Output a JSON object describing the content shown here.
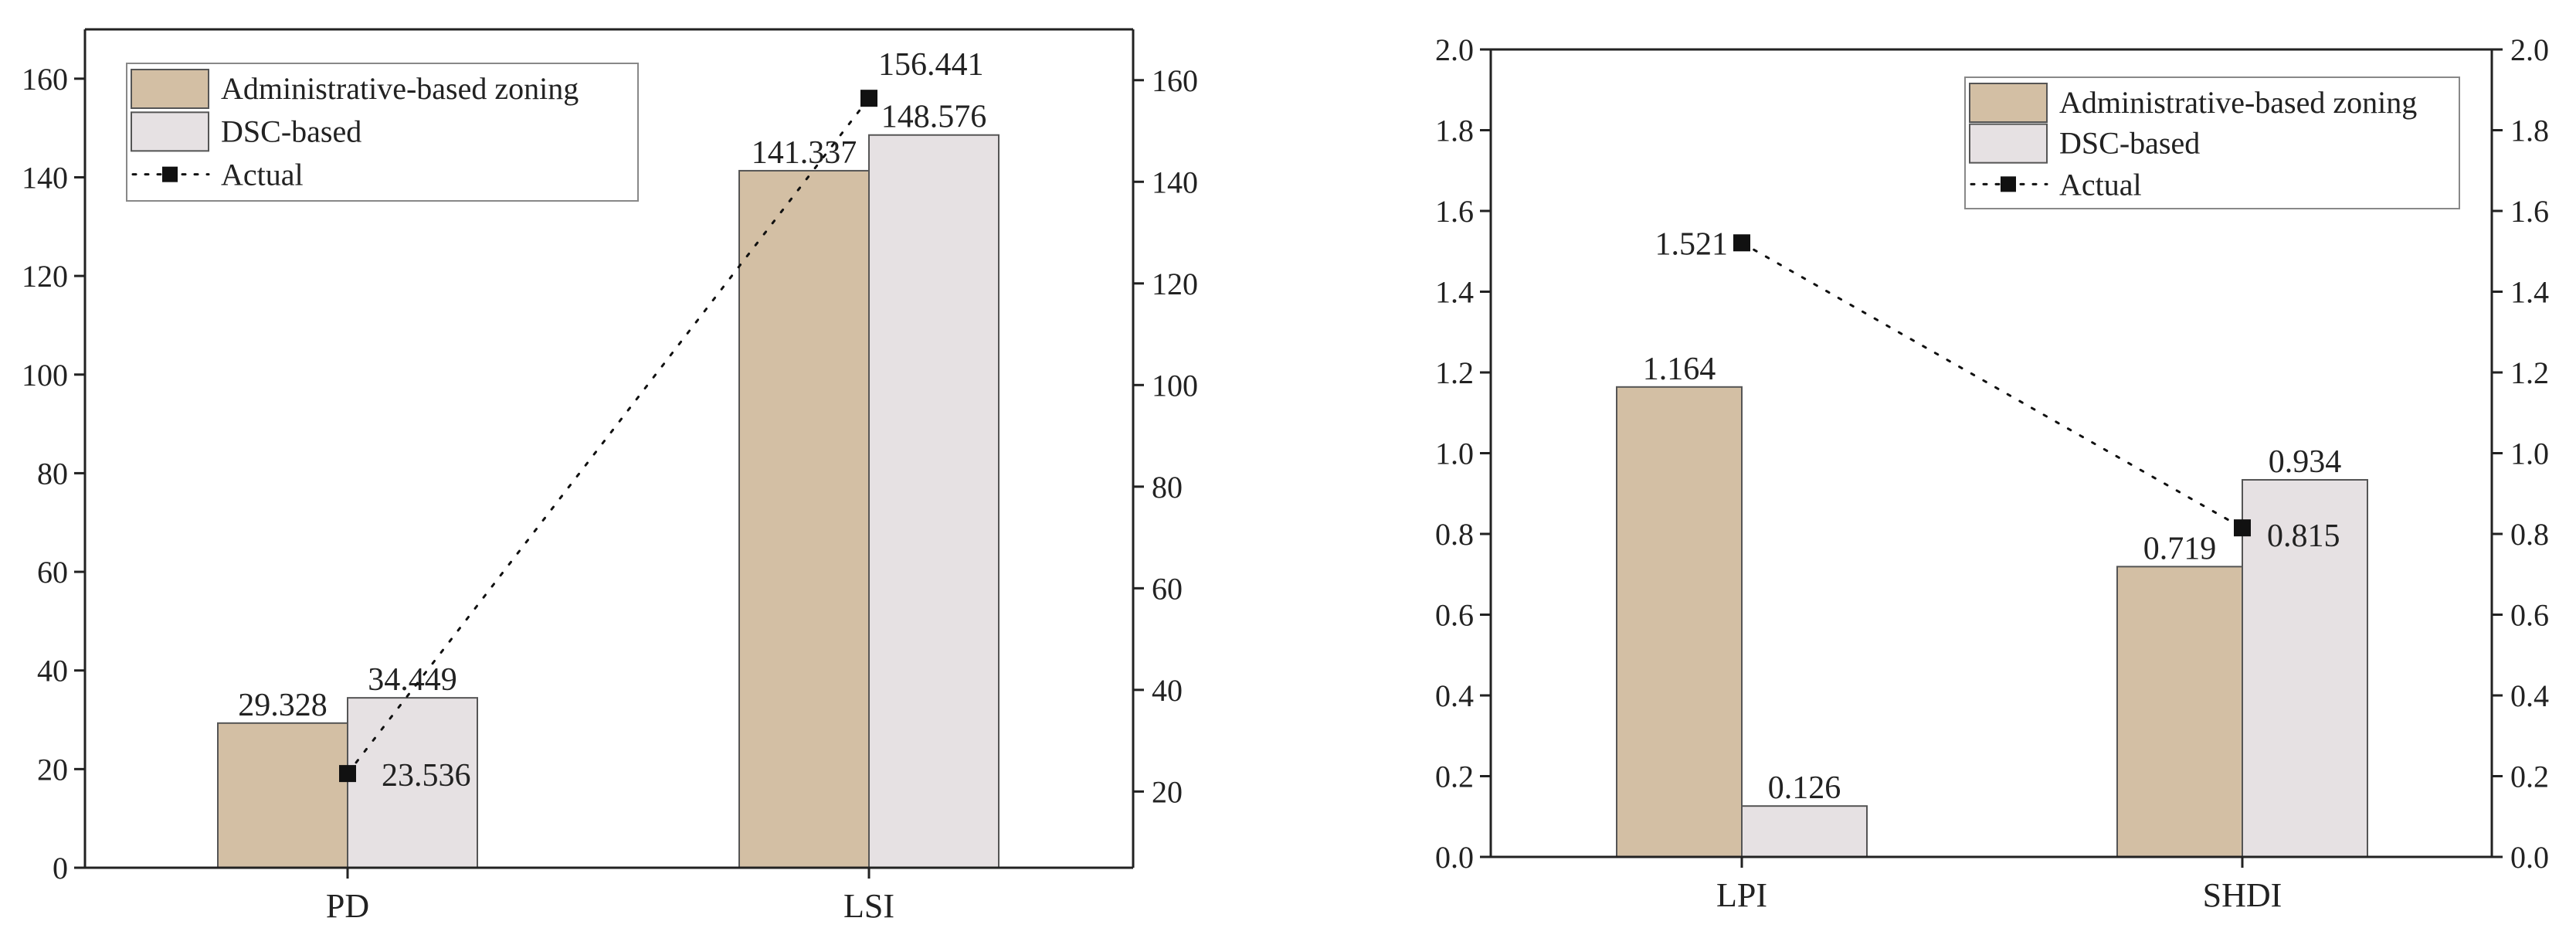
{
  "chart_data": [
    {
      "type": "bar",
      "categories": [
        "PD",
        "LSI"
      ],
      "series": [
        {
          "name": "Administrative-based zoning",
          "values": [
            29.328,
            141.337
          ],
          "labels": [
            "29.328",
            "141.337"
          ]
        },
        {
          "name": "DSC-based",
          "values": [
            34.449,
            148.576
          ],
          "labels": [
            "34.449",
            "148.576"
          ]
        }
      ],
      "line_series": {
        "name": "Actual",
        "values": [
          23.536,
          156.441
        ],
        "labels": [
          "23.536",
          "156.441"
        ],
        "axis": "right"
      },
      "ylim_left": [
        0,
        170
      ],
      "yticks_left": [
        "0",
        "20",
        "40",
        "60",
        "80",
        "100",
        "120",
        "140",
        "160"
      ],
      "ylim_right": [
        5,
        170
      ],
      "yticks_right": [
        "20",
        "40",
        "60",
        "80",
        "100",
        "120",
        "140",
        "160"
      ],
      "legend": "top-left",
      "grid": false
    },
    {
      "type": "bar",
      "categories": [
        "LPI",
        "SHDI"
      ],
      "series": [
        {
          "name": "Administrative-based zoning",
          "values": [
            1.164,
            0.719
          ],
          "labels": [
            "1.164",
            "0.719"
          ]
        },
        {
          "name": "DSC-based",
          "values": [
            0.126,
            0.934
          ],
          "labels": [
            "0.126",
            "0.934"
          ]
        }
      ],
      "line_series": {
        "name": "Actual",
        "values": [
          1.521,
          0.815
        ],
        "labels": [
          "1.521",
          "0.815"
        ],
        "axis": "right"
      },
      "ylim_left": [
        0,
        2.0
      ],
      "yticks_left": [
        "0.0",
        "0.2",
        "0.4",
        "0.6",
        "0.8",
        "1.0",
        "1.2",
        "1.4",
        "1.6",
        "1.8",
        "2.0"
      ],
      "ylim_right": [
        0,
        2.0
      ],
      "yticks_right": [
        "0.0",
        "0.2",
        "0.4",
        "0.6",
        "0.8",
        "1.0",
        "1.2",
        "1.4",
        "1.6",
        "1.8",
        "2.0"
      ],
      "legend": "top-right",
      "grid": false
    }
  ],
  "colors": {
    "admin": "#d3bfa4",
    "dsc": "#e6e1e3",
    "actual": "#111111",
    "axis": "#222222"
  }
}
